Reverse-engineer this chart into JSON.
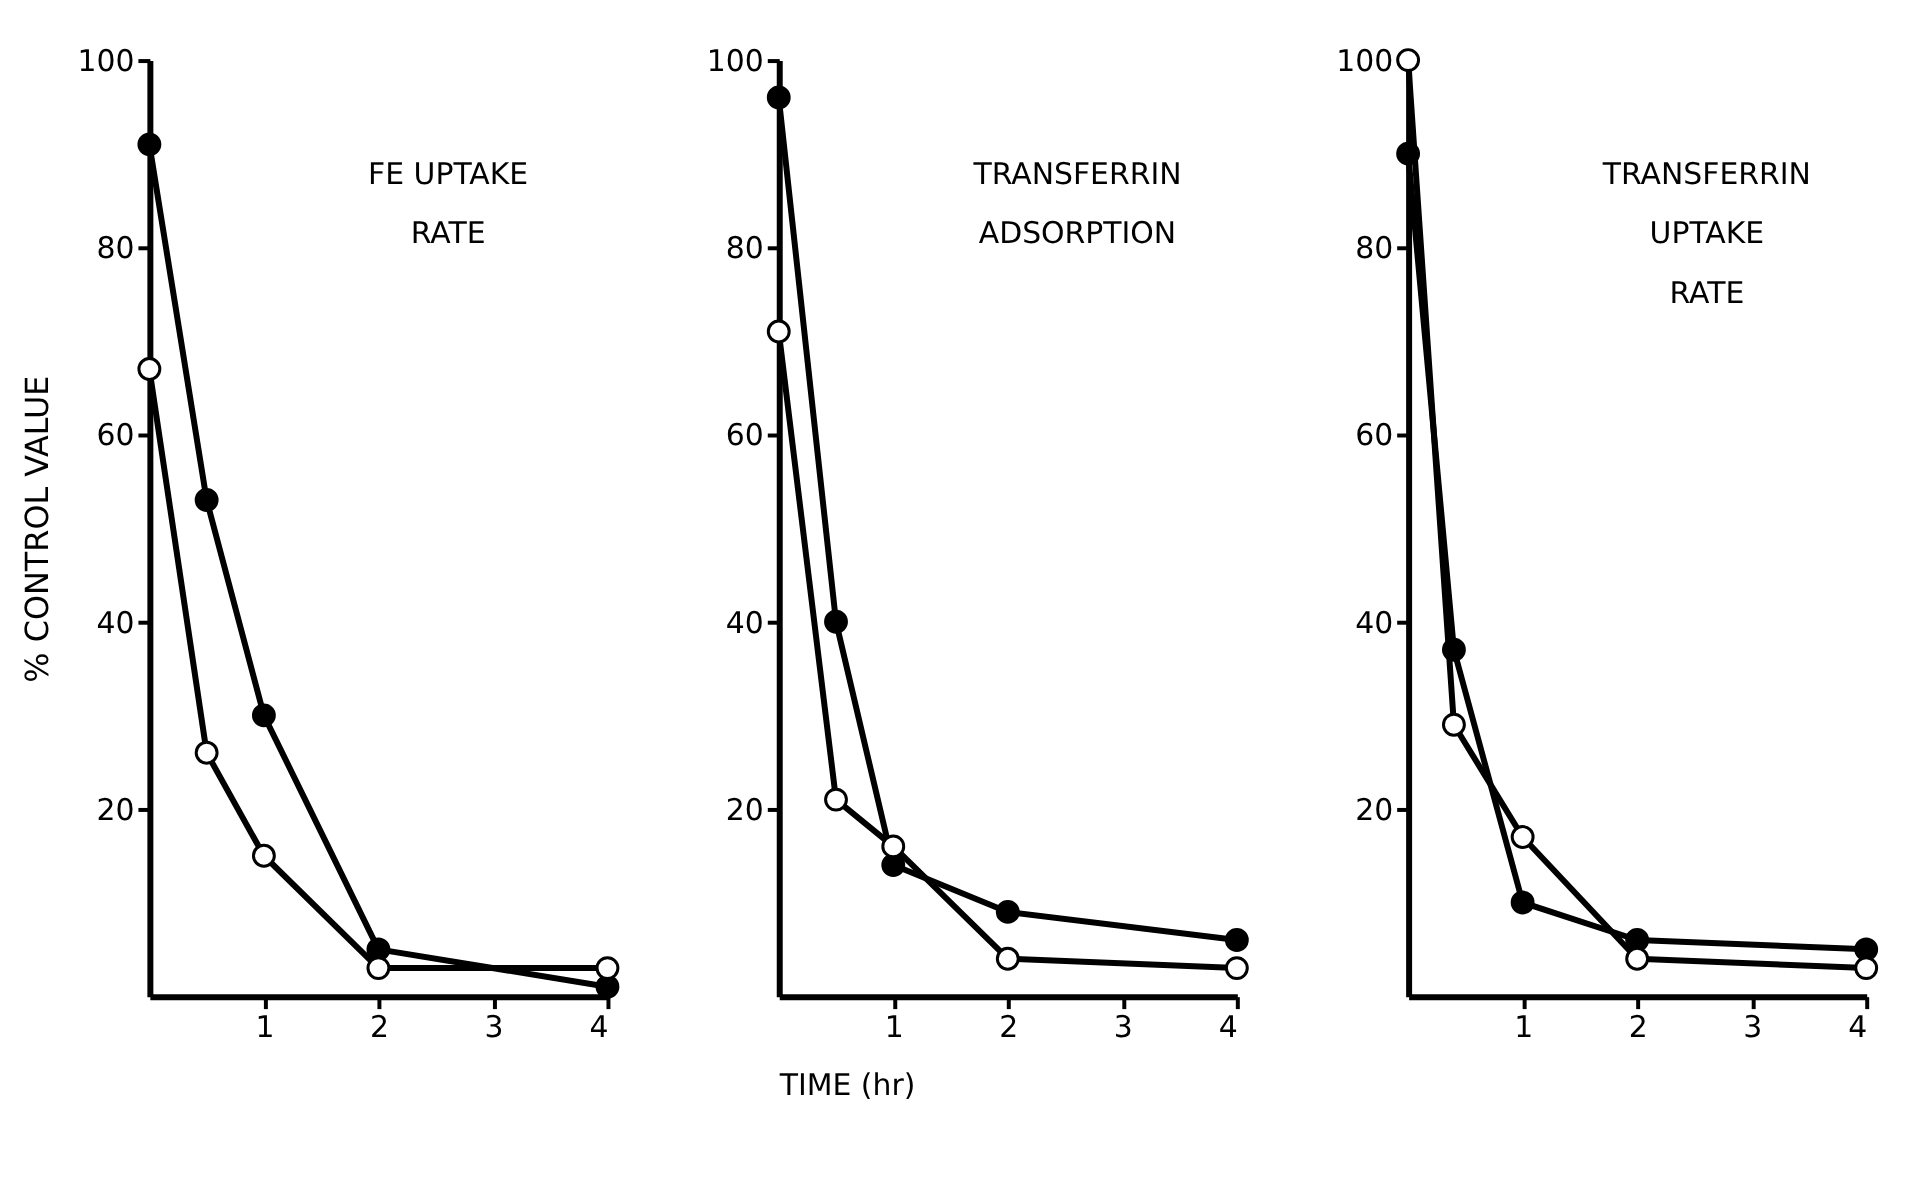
{
  "chart_data": [
    {
      "type": "line",
      "title": "FE UPTAKE\nRATE",
      "ylabel": "% CONTROL VALUE",
      "xlim": [
        0,
        4
      ],
      "xticks": [
        1,
        2,
        3,
        4
      ],
      "ylim": [
        0,
        100
      ],
      "yticks": [
        20,
        40,
        60,
        80,
        100
      ],
      "marker": "circle",
      "line_style": "solid",
      "grid": false,
      "series": [
        {
          "color": "#000000",
          "x": [
            0,
            0.5,
            1,
            2,
            4
          ],
          "values": [
            91,
            53,
            30,
            5,
            1
          ]
        },
        {
          "color": "#000000",
          "x": [
            0,
            0.5,
            1,
            2,
            4
          ],
          "values": [
            67,
            26,
            15,
            3,
            3
          ]
        }
      ]
    },
    {
      "type": "line",
      "title": "TRANSFERRIN\nADSORPTION",
      "xlabel": "TIME  (hr)",
      "xlim": [
        0,
        4
      ],
      "xticks": [
        1,
        2,
        3,
        4
      ],
      "ylim": [
        0,
        100
      ],
      "yticks": [
        20,
        40,
        60,
        80,
        100
      ],
      "marker": "circle",
      "line_style": "solid",
      "grid": false,
      "series": [
        {
          "color": "#000000",
          "x": [
            0,
            0.5,
            1,
            2,
            4
          ],
          "values": [
            96,
            40,
            14,
            9,
            6
          ]
        },
        {
          "color": "#000000",
          "x": [
            0,
            0.5,
            1,
            2,
            4
          ],
          "values": [
            71,
            21,
            16,
            4,
            3
          ]
        }
      ]
    },
    {
      "type": "line",
      "title": "TRANSFERRIN\nUPTAKE\nRATE",
      "xlim": [
        0,
        4
      ],
      "xticks": [
        1,
        2,
        3,
        4
      ],
      "ylim": [
        0,
        100
      ],
      "yticks": [
        20,
        40,
        60,
        80,
        100
      ],
      "marker": "circle",
      "line_style": "solid",
      "grid": false,
      "series": [
        {
          "color": "#000000",
          "x": [
            0,
            0.4,
            1,
            2,
            4
          ],
          "values": [
            90,
            37,
            10,
            6,
            5
          ]
        },
        {
          "color": "#000000",
          "x": [
            0,
            0.4,
            1,
            2,
            4
          ],
          "values": [
            100,
            29,
            17,
            4,
            3
          ]
        }
      ]
    }
  ]
}
